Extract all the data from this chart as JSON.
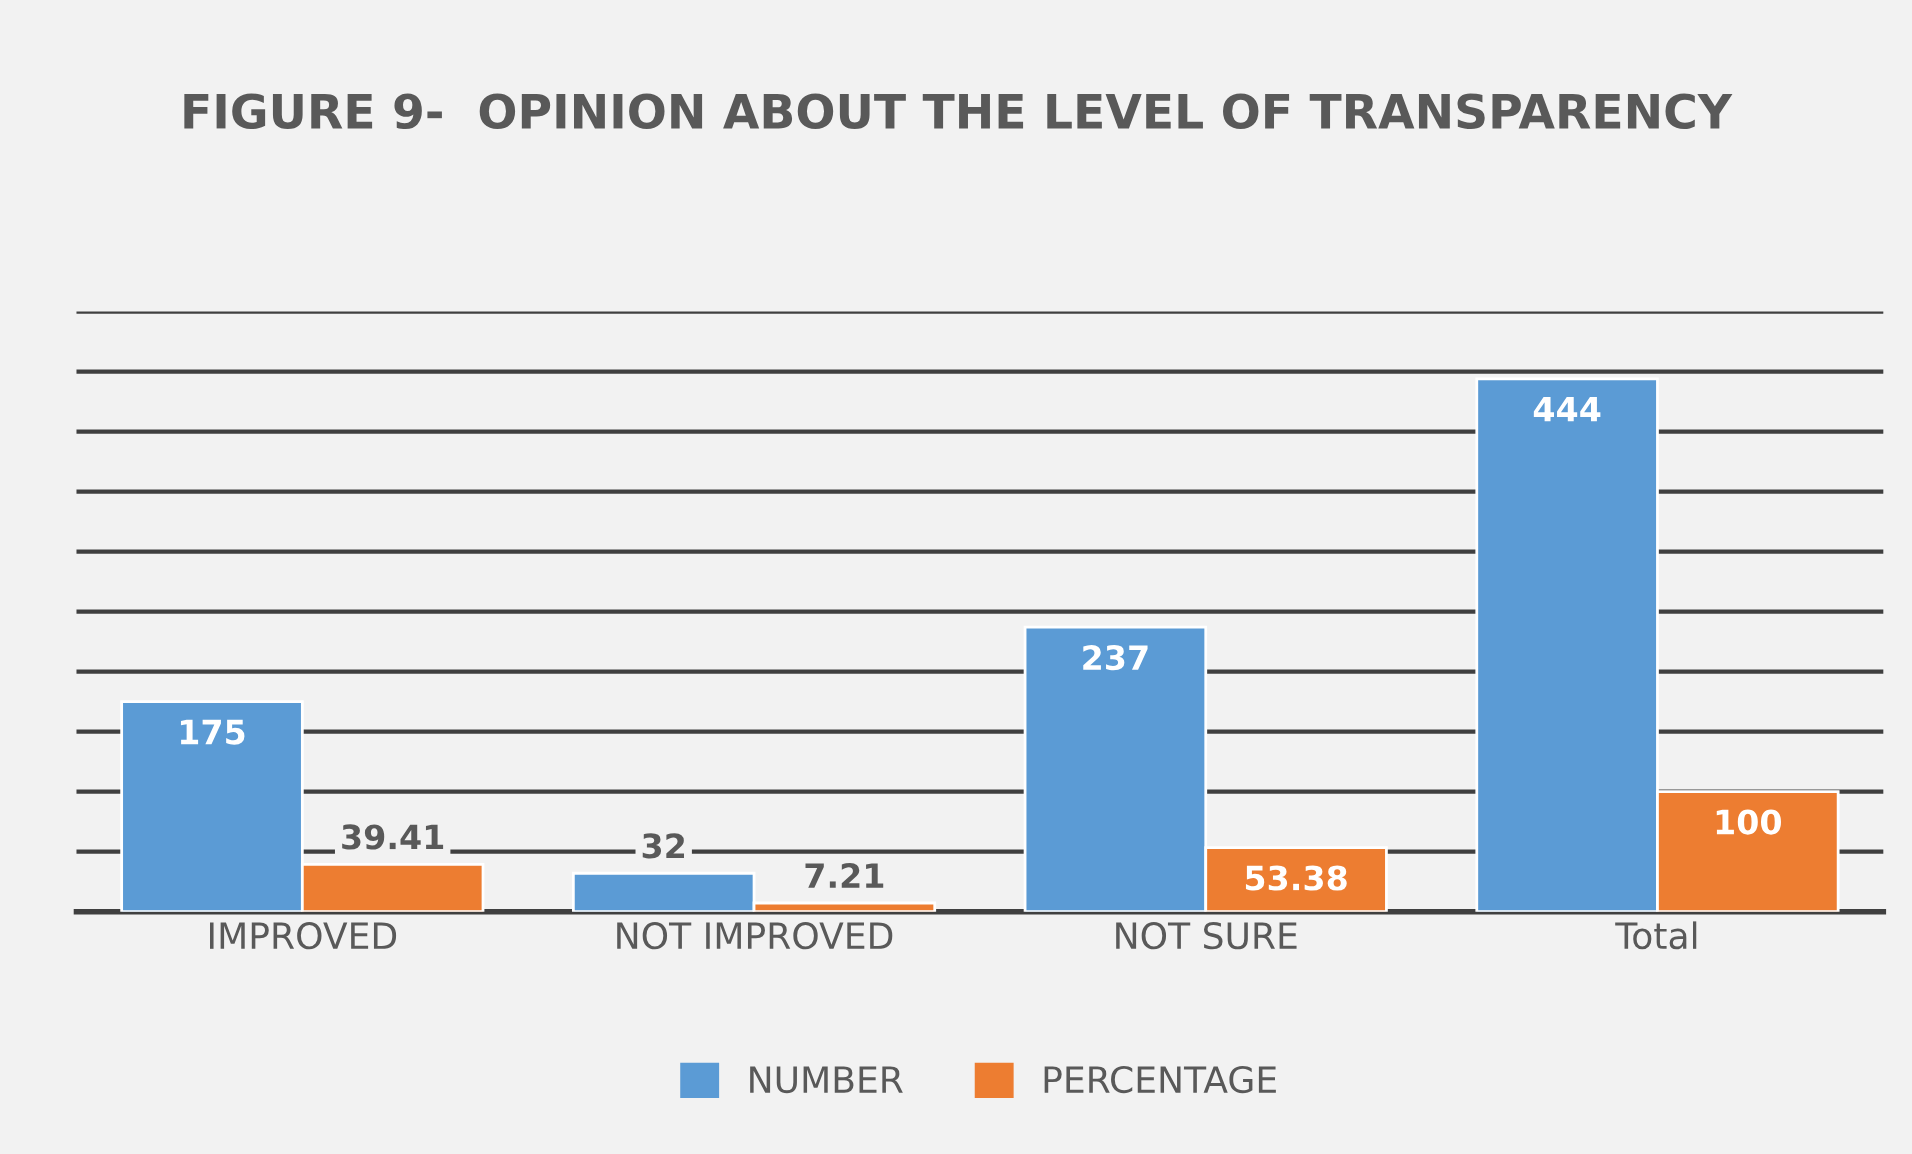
{
  "chart_data": {
    "type": "bar",
    "title": "FIGURE 9-  OPINION ABOUT THE LEVEL OF TRANSPARENCY",
    "categories": [
      "IMPROVED",
      "NOT IMPROVED",
      "NOT SURE",
      "Total"
    ],
    "series": [
      {
        "name": "NUMBER",
        "color": "#5b9bd5",
        "values": [
          175,
          32,
          237,
          444
        ]
      },
      {
        "name": "PERCENTAGE",
        "color": "#ed7d31",
        "values": [
          39.41,
          7.21,
          53.38,
          100
        ]
      }
    ],
    "ylim": [
      0,
      500
    ],
    "yticks": [
      {
        "value": 0,
        "label": null
      },
      {
        "value": 50,
        "label": null
      },
      {
        "value": 100,
        "label": null
      },
      {
        "value": 150,
        "label": null
      },
      {
        "value": 200,
        "label": null
      },
      {
        "value": 250,
        "label": null
      },
      {
        "value": 300,
        "label": null
      },
      {
        "value": 350,
        "label": null
      },
      {
        "value": 400,
        "label": null
      },
      {
        "value": 450,
        "label": null
      },
      {
        "value": 500,
        "label": null
      }
    ],
    "tick_labels": "x",
    "grid": "y",
    "data_labels": true,
    "legend": "bottom"
  }
}
